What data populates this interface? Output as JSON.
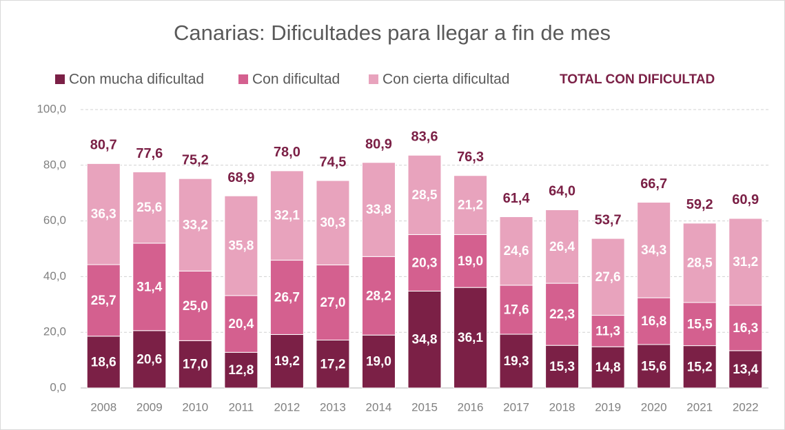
{
  "chart_data": {
    "type": "stacked_bar",
    "title": "Canarias: Dificultades para llegar a fin de mes",
    "categories": [
      "2008",
      "2009",
      "2010",
      "2011",
      "2012",
      "2013",
      "2014",
      "2015",
      "2016",
      "2017",
      "2018",
      "2019",
      "2020",
      "2021",
      "2022"
    ],
    "series": [
      {
        "name": "Con mucha dificultad",
        "color": "#7b2046",
        "values": [
          18.6,
          20.6,
          17.0,
          12.8,
          19.2,
          17.2,
          19.0,
          34.8,
          36.1,
          19.3,
          15.3,
          14.8,
          15.6,
          15.2,
          13.4
        ],
        "value_labels": [
          "18,6",
          "20,6",
          "17,0",
          "12,8",
          "19,2",
          "17,2",
          "19,0",
          "34,8",
          "36,1",
          "19,3",
          "15,3",
          "14,8",
          "15,6",
          "15,2",
          "13,4"
        ]
      },
      {
        "name": "Con dificultad",
        "color": "#d4608f",
        "values": [
          25.7,
          31.4,
          25.0,
          20.4,
          26.7,
          27.0,
          28.2,
          20.3,
          19.0,
          17.6,
          22.3,
          11.3,
          16.8,
          15.5,
          16.3
        ],
        "value_labels": [
          "25,7",
          "31,4",
          "25,0",
          "20,4",
          "26,7",
          "27,0",
          "28,2",
          "20,3",
          "19,0",
          "17,6",
          "22,3",
          "11,3",
          "16,8",
          "15,5",
          "16,3"
        ]
      },
      {
        "name": "Con cierta dificultad",
        "color": "#e8a3bd",
        "values": [
          36.3,
          25.6,
          33.2,
          35.8,
          32.1,
          30.3,
          33.8,
          28.5,
          21.2,
          24.6,
          26.4,
          27.6,
          34.3,
          28.5,
          31.2
        ],
        "value_labels": [
          "36,3",
          "25,6",
          "33,2",
          "35,8",
          "32,1",
          "30,3",
          "33,8",
          "28,5",
          "21,2",
          "24,6",
          "26,4",
          "27,6",
          "34,3",
          "28,5",
          "31,2"
        ]
      }
    ],
    "totals": {
      "name": "TOTAL CON DIFICULTAD",
      "color": "#7b2046",
      "values": [
        80.7,
        77.6,
        75.2,
        68.9,
        78.0,
        74.5,
        80.9,
        83.6,
        76.3,
        61.4,
        64.0,
        53.7,
        66.7,
        59.2,
        60.9
      ],
      "value_labels": [
        "80,7",
        "77,6",
        "75,2",
        "68,9",
        "78,0",
        "74,5",
        "80,9",
        "83,6",
        "76,3",
        "61,4",
        "64,0",
        "53,7",
        "66,7",
        "59,2",
        "60,9"
      ]
    },
    "ylim": [
      0,
      100
    ],
    "yticks": [
      {
        "value": 0,
        "label": "0,0"
      },
      {
        "value": 20,
        "label": "20,0"
      },
      {
        "value": 40,
        "label": "40,0"
      },
      {
        "value": 60,
        "label": "60,0"
      },
      {
        "value": 80,
        "label": "80,0"
      },
      {
        "value": 100,
        "label": "100,0"
      }
    ],
    "grid": true
  }
}
